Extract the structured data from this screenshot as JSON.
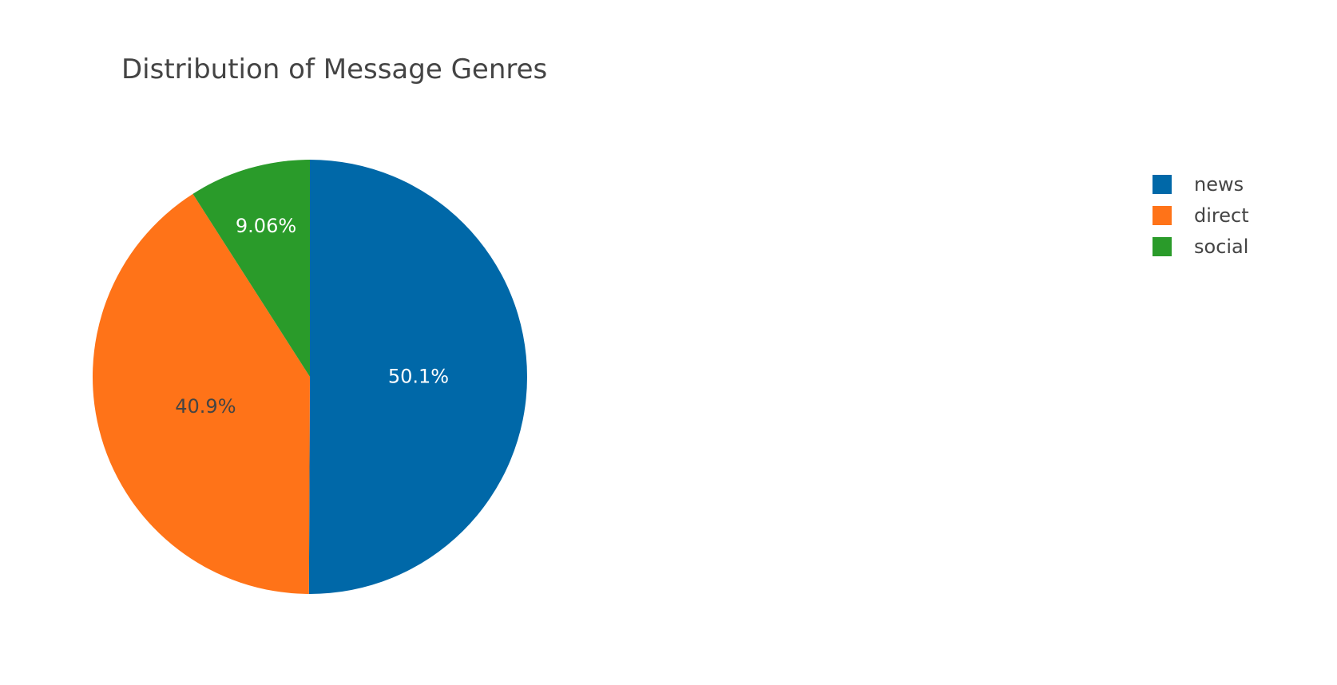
{
  "chart_data": {
    "type": "pie",
    "title": "Distribution of Message Genres",
    "labels": [
      "news",
      "direct",
      "social"
    ],
    "values": [
      50.1,
      40.9,
      9.06
    ],
    "value_labels": [
      "50.1%",
      "40.9%",
      "9.06%"
    ],
    "colors": [
      "#0068a8",
      "#ff7318",
      "#2a9b2a"
    ],
    "label_colors": [
      "#ffffff",
      "#444444",
      "#ffffff"
    ],
    "direction": "clockwise",
    "start": "12 o'clock",
    "legend": {
      "position": "top-right",
      "items": [
        "news",
        "direct",
        "social"
      ]
    }
  }
}
